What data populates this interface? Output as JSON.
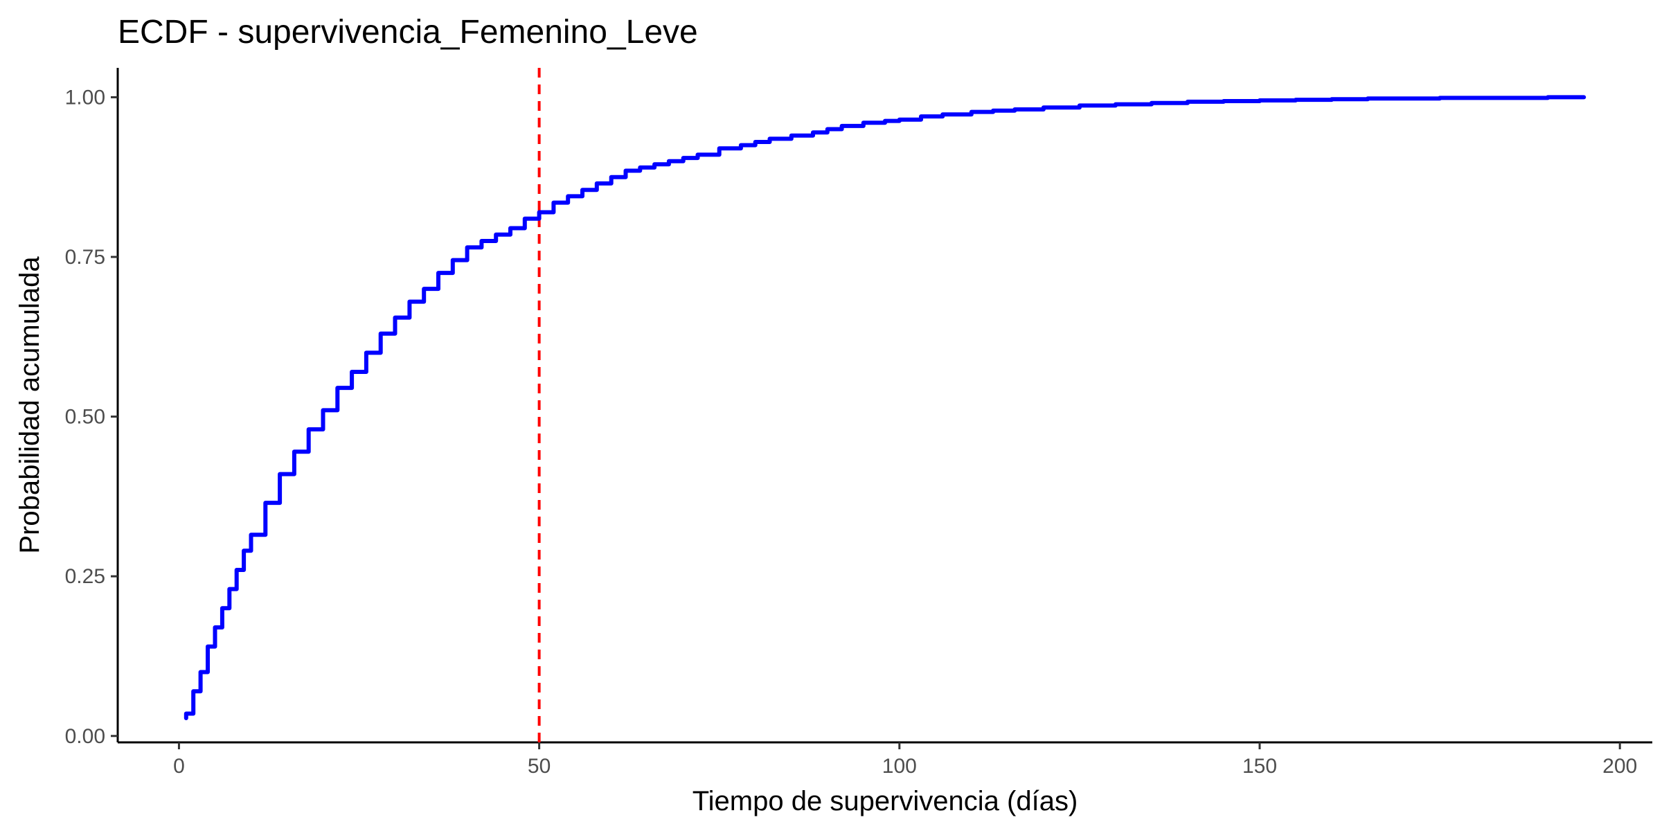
{
  "chart_data": {
    "type": "line",
    "title": "ECDF - supervivencia_Femenino_Leve",
    "xlabel": "Tiempo de supervivencia (días)",
    "ylabel": "Probabilidad acumulada",
    "xlim": [
      -8.5,
      204.5
    ],
    "ylim": [
      -0.01,
      1.046
    ],
    "x_ticks": [
      0,
      50,
      100,
      150,
      200
    ],
    "x_tick_labels": [
      "0",
      "50",
      "100",
      "150",
      "200"
    ],
    "y_ticks": [
      0,
      0.25,
      0.5,
      0.75,
      1
    ],
    "y_tick_labels": [
      "0.00",
      "0.25",
      "0.50",
      "0.75",
      "1.00"
    ],
    "grid": false,
    "legend": "none",
    "reference_line": {
      "orientation": "vertical",
      "x": 50,
      "style": "dashed",
      "color": "#ff0000"
    },
    "series": [
      {
        "color": "#0000ff",
        "x": [
          1,
          2,
          3,
          4,
          5,
          6,
          7,
          8,
          9,
          10,
          12,
          14,
          16,
          18,
          20,
          22,
          24,
          26,
          28,
          30,
          32,
          34,
          36,
          38,
          40,
          42,
          44,
          46,
          48,
          50,
          52,
          54,
          56,
          58,
          60,
          62,
          64,
          66,
          68,
          70,
          72,
          75,
          78,
          80,
          82,
          85,
          88,
          90,
          92,
          95,
          98,
          100,
          103,
          106,
          110,
          113,
          116,
          120,
          125,
          130,
          135,
          140,
          145,
          150,
          155,
          160,
          165,
          170,
          175,
          180,
          185,
          190,
          195
        ],
        "y": [
          0.035,
          0.07,
          0.1,
          0.14,
          0.17,
          0.2,
          0.23,
          0.26,
          0.29,
          0.315,
          0.365,
          0.41,
          0.445,
          0.48,
          0.51,
          0.545,
          0.57,
          0.6,
          0.63,
          0.655,
          0.68,
          0.7,
          0.725,
          0.745,
          0.765,
          0.775,
          0.785,
          0.795,
          0.81,
          0.82,
          0.835,
          0.845,
          0.855,
          0.865,
          0.875,
          0.885,
          0.89,
          0.895,
          0.9,
          0.905,
          0.91,
          0.92,
          0.925,
          0.93,
          0.935,
          0.94,
          0.945,
          0.95,
          0.955,
          0.96,
          0.963,
          0.965,
          0.97,
          0.973,
          0.977,
          0.979,
          0.981,
          0.984,
          0.987,
          0.989,
          0.991,
          0.993,
          0.994,
          0.995,
          0.996,
          0.997,
          0.998,
          0.998,
          0.999,
          0.999,
          0.999,
          1.0,
          1.0
        ]
      }
    ]
  }
}
